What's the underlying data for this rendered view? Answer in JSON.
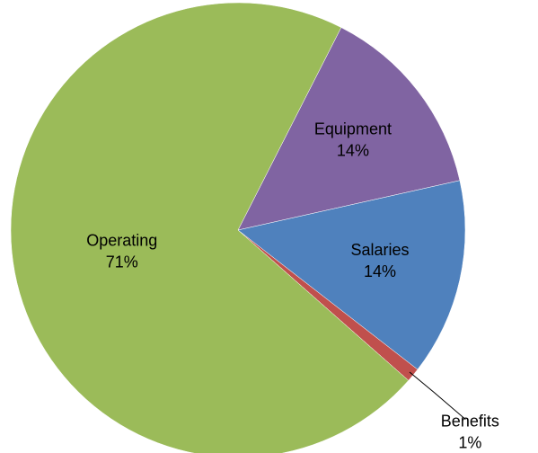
{
  "chart_data": {
    "type": "pie",
    "categories": [
      "Equipment",
      "Salaries",
      "Benefits",
      "Operating"
    ],
    "values": [
      14,
      14,
      1,
      71
    ],
    "value_labels": [
      "14%",
      "14%",
      "1%",
      "71%"
    ],
    "colors": [
      "#8064a2",
      "#4f81bd",
      "#c0504d",
      "#9bbb59"
    ]
  }
}
